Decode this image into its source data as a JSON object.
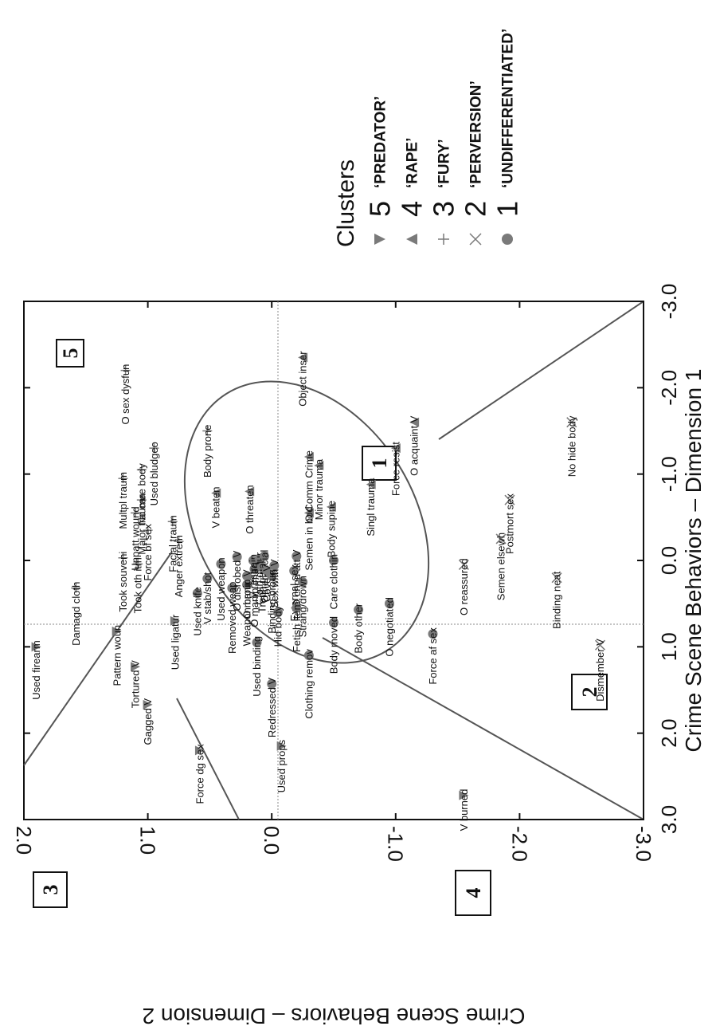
{
  "chart_data": {
    "type": "scatter",
    "orientation": "rotated 90 degrees counter-clockwise",
    "xlabel": "Crime Scene Behaviors – Dimension 1",
    "ylabel": "Crime Scene Behaviors – Dimension 2",
    "xlim": [
      -3.0,
      3.0
    ],
    "ylim": [
      -3.0,
      2.0
    ],
    "x_ticks": [
      "-3.0",
      "-2.0",
      "-1.0",
      "0.0",
      "1.0",
      "2.0",
      "3.0"
    ],
    "y_ticks": [
      "-3.0",
      "-2.0",
      "-1.0",
      "0.0",
      "1.0",
      "2.0"
    ],
    "grid": false,
    "region_labels": [
      "1",
      "2",
      "3",
      "4",
      "5"
    ],
    "legend": {
      "title": "Clusters",
      "placement": "right",
      "entries": [
        {
          "cluster": 5,
          "number": "5",
          "name": "‘PREDATOR’",
          "marker": "triangle-down"
        },
        {
          "cluster": 4,
          "number": "4",
          "name": "‘RAPE’",
          "marker": "triangle-up"
        },
        {
          "cluster": 3,
          "number": "3",
          "name": "‘FURY’",
          "marker": "plus"
        },
        {
          "cluster": 2,
          "number": "2",
          "name": "‘PERVERSION’",
          "marker": "x"
        },
        {
          "cluster": 1,
          "number": "1",
          "name": "‘UNDIFFERENTIATED’",
          "marker": "circle"
        }
      ]
    },
    "points": [
      {
        "label": "Used firearm",
        "x": 1.0,
        "y": 1.9,
        "cluster": 5
      },
      {
        "label": "Pattern woun",
        "x": 0.82,
        "y": 1.25,
        "cluster": 5
      },
      {
        "label": "Tortured V",
        "x": 1.23,
        "y": 1.1,
        "cluster": 5
      },
      {
        "label": "Gagged V",
        "x": 1.67,
        "y": 1.0,
        "cluster": 5
      },
      {
        "label": "Force dg sex",
        "x": 2.2,
        "y": 0.58,
        "cluster": 5
      },
      {
        "label": "Used ligatur",
        "x": 0.7,
        "y": 0.78,
        "cluster": 5
      },
      {
        "label": "Used props",
        "x": 2.15,
        "y": -0.08,
        "cluster": 5
      },
      {
        "label": "Redressed V",
        "x": 1.43,
        "y": 0.0,
        "cluster": 1
      },
      {
        "label": "V burned",
        "x": 2.72,
        "y": -1.55,
        "cluster": 5
      },
      {
        "label": "V beaten",
        "x": -0.78,
        "y": 0.45,
        "cluster": 4
      },
      {
        "label": "O threaten",
        "x": -0.8,
        "y": 0.18,
        "cluster": 4
      },
      {
        "label": "Semen in bod",
        "x": -0.55,
        "y": -0.3,
        "cluster": 4
      },
      {
        "label": "Body supine",
        "x": -0.62,
        "y": -0.48,
        "cluster": 4
      },
      {
        "label": "Singl trauma",
        "x": -0.88,
        "y": -0.8,
        "cluster": 4
      },
      {
        "label": "Minor trauma",
        "x": -1.1,
        "y": -0.38,
        "cluster": 4
      },
      {
        "label": "O Comm Crime",
        "x": -1.2,
        "y": -0.3,
        "cluster": 4
      },
      {
        "label": "Force resist",
        "x": -1.3,
        "y": -1.0,
        "cluster": 4
      },
      {
        "label": "O acquaint V",
        "x": -1.6,
        "y": -1.15,
        "cluster": 4
      },
      {
        "label": "Object inser",
        "x": -2.35,
        "y": -0.25,
        "cluster": 4
      },
      {
        "label": "Damagd cloth",
        "x": 0.32,
        "y": 1.58,
        "cluster": 3
      },
      {
        "label": "Took oth itm",
        "x": 0.04,
        "y": 1.08,
        "cluster": 3
      },
      {
        "label": "Took souveni",
        "x": -0.03,
        "y": 1.2,
        "cluster": 3
      },
      {
        "label": "Anger extrem",
        "x": -0.22,
        "y": 0.75,
        "cluster": 3
      },
      {
        "label": "Facial traum",
        "x": -0.45,
        "y": 0.8,
        "cluster": 3
      },
      {
        "label": "Force bf sex",
        "x": -0.35,
        "y": 1.0,
        "cluster": 3
      },
      {
        "label": "Unpatt wound",
        "x": -0.55,
        "y": 1.1,
        "cluster": 3
      },
      {
        "label": "Major trauma",
        "x": -0.7,
        "y": 1.05,
        "cluster": 3
      },
      {
        "label": "Multpl traum",
        "x": -0.95,
        "y": 1.2,
        "cluster": 3
      },
      {
        "label": "No care body",
        "x": -1.05,
        "y": 1.05,
        "cluster": 3
      },
      {
        "label": "Used bludgeo",
        "x": -1.3,
        "y": 0.95,
        "cluster": 3
      },
      {
        "label": "Body prone",
        "x": -1.5,
        "y": 0.52,
        "cluster": 3
      },
      {
        "label": "O sex dysfun",
        "x": -2.2,
        "y": 1.18,
        "cluster": 3
      },
      {
        "label": "O reassured",
        "x": 0.05,
        "y": -1.55,
        "cluster": 2
      },
      {
        "label": "Binding neat",
        "x": 0.2,
        "y": -2.3,
        "cluster": 2
      },
      {
        "label": "Dismember V",
        "x": 0.98,
        "y": -2.65,
        "cluster": 2
      },
      {
        "label": "Semen elsewh",
        "x": -0.25,
        "y": -1.85,
        "cluster": 2
      },
      {
        "label": "Postmort sex",
        "x": -0.7,
        "y": -1.92,
        "cluster": 2
      },
      {
        "label": "No hide body",
        "x": -1.6,
        "y": -2.42,
        "cluster": 2
      },
      {
        "label": "Used knife",
        "x": 0.38,
        "y": 0.6,
        "cluster": 1
      },
      {
        "label": "V stab/shot",
        "x": 0.21,
        "y": 0.52,
        "cluster": 1
      },
      {
        "label": "Used weapon",
        "x": 0.04,
        "y": 0.41,
        "cluster": 1
      },
      {
        "label": "Removed weap",
        "x": 0.32,
        "y": 0.32,
        "cluster": 1
      },
      {
        "label": "Weapon broug",
        "x": 0.28,
        "y": 0.2,
        "cluster": 1
      },
      {
        "label": "O manip V",
        "x": 0.18,
        "y": 0.2,
        "cluster": 1
      },
      {
        "label": "O manip imag",
        "x": 0.1,
        "y": 0.14,
        "cluster": 1
      },
      {
        "label": "O disrobed V",
        "x": -0.04,
        "y": 0.28,
        "cluster": 1
      },
      {
        "label": "V restrain",
        "x": 0.0,
        "y": 0.15,
        "cluster": 1
      },
      {
        "label": "Cloth distur",
        "x": -0.02,
        "y": 0.1,
        "cluster": 1
      },
      {
        "label": "Other facial",
        "x": -0.05,
        "y": 0.06,
        "cluster": 1
      },
      {
        "label": "Troph ritual",
        "x": 0.08,
        "y": 0.08,
        "cluster": 1
      },
      {
        "label": "Cover V",
        "x": 0.12,
        "y": 0.04,
        "cluster": 1
      },
      {
        "label": "Binding broug",
        "x": 0.18,
        "y": 0.0,
        "cluster": 1
      },
      {
        "label": "Sex with V",
        "x": 0.06,
        "y": -0.02,
        "cluster": 1
      },
      {
        "label": "O chgd att V",
        "x": -0.05,
        "y": -0.2,
        "cluster": 1
      },
      {
        "label": "Used binding",
        "x": 0.95,
        "y": 0.12,
        "cluster": 1
      },
      {
        "label": "Hid body",
        "x": 0.6,
        "y": -0.05,
        "cluster": 1
      },
      {
        "label": "External sex",
        "x": 0.12,
        "y": -0.18,
        "cluster": 1
      },
      {
        "label": "Strang/drown",
        "x": 0.25,
        "y": -0.25,
        "cluster": 1
      },
      {
        "label": "Fetish item",
        "x": 0.55,
        "y": -0.2,
        "cluster": 1
      },
      {
        "label": "Clothing remov",
        "x": 1.1,
        "y": -0.3,
        "cluster": 1
      },
      {
        "label": "Care clothin",
        "x": 0.0,
        "y": -0.5,
        "cluster": 1
      },
      {
        "label": "Body moved",
        "x": 0.72,
        "y": -0.5,
        "cluster": 1
      },
      {
        "label": "Body other",
        "x": 0.57,
        "y": -0.7,
        "cluster": 1
      },
      {
        "label": "O negotiated",
        "x": 0.5,
        "y": -0.95,
        "cluster": 1
      },
      {
        "label": "Force af sex",
        "x": 0.85,
        "y": -1.3,
        "cluster": 1
      }
    ]
  }
}
